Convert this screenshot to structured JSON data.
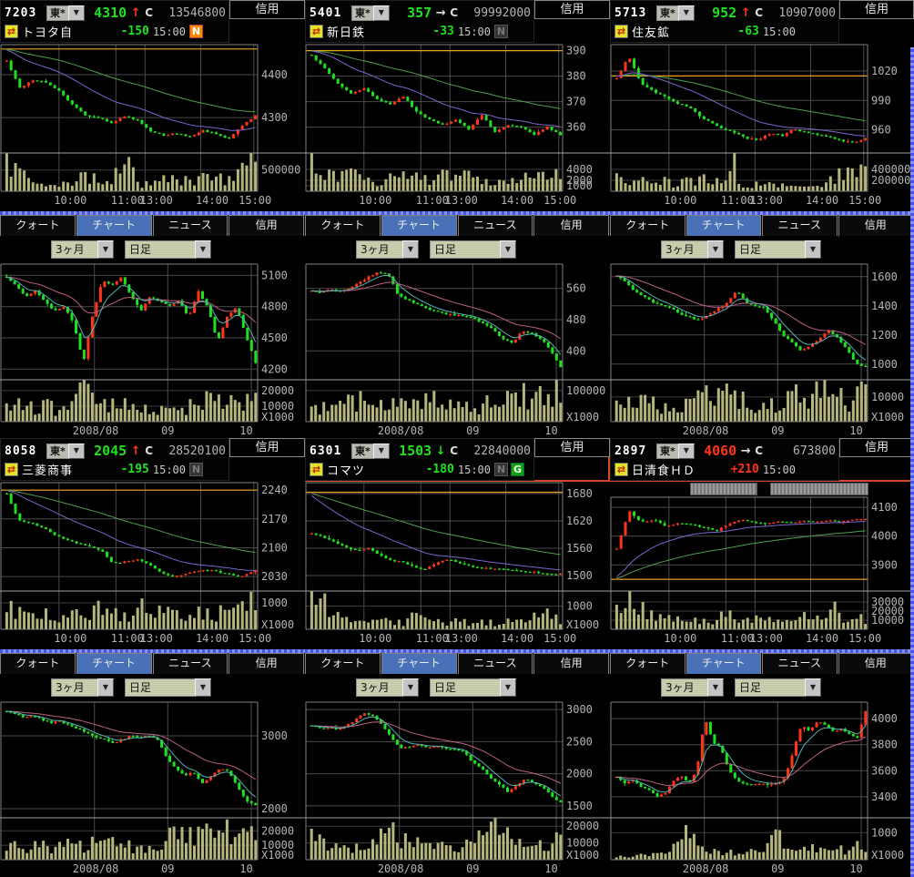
{
  "shared": {
    "tabs": [
      "クォート",
      "チャート",
      "ニュース",
      "信用"
    ],
    "active_tab_index": 1,
    "credit_tab": "信用",
    "period_label": "3ヶ月",
    "interval_label": "日足",
    "close_label": "C",
    "dropdown_glyph": "▼",
    "intraday_xlabels": [
      [
        "10:00",
        0.26
      ],
      [
        "11:00",
        0.485
      ],
      [
        "13:00",
        0.6
      ],
      [
        "14:00",
        0.82
      ],
      [
        "15:00",
        0.99
      ]
    ],
    "intraday_grid": [
      0.215,
      0.44,
      0.555,
      0.775,
      0.985
    ],
    "daily_xlabels": [
      [
        "2008/08",
        0.36
      ],
      [
        "09",
        0.645
      ],
      [
        "10",
        0.955
      ]
    ],
    "daily_grid": [
      0.355,
      0.645,
      0.975
    ],
    "colors": {
      "up": "#ff3518",
      "down": "#1ee11e",
      "flat": "#e0e0e0",
      "prev_close_line": "#e8a01e",
      "ma_intraday_fast": "#7a66cc",
      "ma_intraday_slow": "#4f9e4f",
      "ma_daily_fast": "#57b2b2",
      "ma_daily_slow": "#bb5f84",
      "volume_bar": "#b6b67c",
      "grid_line": "#4a4a4a",
      "axis_text": "#b4b4b4",
      "tab_active_bg": "#4a70b8",
      "highlight_border": "#d04a22"
    }
  },
  "panels": [
    {
      "code": "7203",
      "market": "東*",
      "name": "トヨタ自",
      "price": "4310",
      "price_dir": "down",
      "tick_arrow": "↑",
      "tick_dir": "up",
      "day_volume": "13546800",
      "change": "-150",
      "change_dir": "down",
      "time": "15:00",
      "badges": [
        {
          "label": "N",
          "style": "on-orange"
        }
      ],
      "highlight": false,
      "pre_chart_controls": false,
      "intraday": {
        "type": "candlestick",
        "kind": "intraday",
        "seed": 7203,
        "n": 58,
        "ylim": [
          4230,
          4468
        ],
        "ylabels": [
          4400,
          4300
        ],
        "prev_close": 4460,
        "anchors": [
          4432,
          4368,
          4388,
          4382,
          4362,
          4330,
          4306,
          4300,
          4288,
          4302,
          4294,
          4268,
          4258,
          4263,
          4255,
          4270,
          4261,
          4251,
          4282,
          4304
        ],
        "vols": [
          620000,
          380000,
          300000,
          160000,
          120000,
          260000,
          310000,
          260000,
          180000,
          820000,
          170000,
          180000,
          280000,
          320000,
          240000,
          380000,
          300000,
          260000,
          520000,
          860000
        ],
        "vol_max": 900000,
        "vol_labels": [
          500000
        ],
        "vol_suffix": ""
      },
      "daily": {
        "type": "candlestick",
        "kind": "daily",
        "seed": 72031,
        "n": 62,
        "ylim": [
          4150,
          5200
        ],
        "ylabels": [
          5100,
          4800,
          4500,
          4200
        ],
        "anchors": [
          5080,
          5000,
          4900,
          4950,
          4850,
          4760,
          4800,
          4640,
          4260,
          4720,
          5050,
          5000,
          5080,
          4900,
          4760,
          4900,
          4850,
          4800,
          4860,
          4700,
          4950,
          4800,
          4460,
          4700,
          4800,
          4520,
          4260
        ],
        "vols": [
          9000,
          11000,
          7000,
          10000,
          12000,
          8000,
          11000,
          9000,
          25000,
          15000,
          12000,
          13000,
          11000,
          9000,
          12000,
          8000,
          7000,
          9000,
          6000,
          10000,
          13000,
          15000,
          17000,
          13000,
          11000,
          15000,
          20000
        ],
        "vol_max": 27000,
        "vol_labels": [
          20000,
          10000
        ],
        "vol_suffix": "X1000"
      }
    },
    {
      "code": "5401",
      "market": "東*",
      "name": "新日鉄",
      "price": "357",
      "price_dir": "down",
      "tick_arrow": "→",
      "tick_dir": "flat",
      "day_volume": "99992000",
      "change": "-33",
      "change_dir": "down",
      "time": "15:00",
      "badges": [
        {
          "label": "N",
          "style": "off"
        }
      ],
      "highlight": false,
      "pre_chart_controls": false,
      "intraday": {
        "type": "candlestick",
        "kind": "intraday",
        "seed": 5401,
        "n": 58,
        "ylim": [
          352,
          392
        ],
        "ylabels": [
          390,
          380,
          370,
          360
        ],
        "prev_close": 390,
        "anchors": [
          388,
          383,
          377,
          373,
          375,
          371,
          369,
          372,
          366,
          363,
          361,
          363,
          359,
          365,
          358,
          361,
          360,
          357,
          360,
          357
        ],
        "vols": [
          6200,
          3000,
          2400,
          3800,
          2600,
          3200,
          1800,
          2400,
          2200,
          2600,
          3000,
          2000,
          3600,
          2200,
          2600,
          2400,
          2000,
          1600,
          2800,
          2600,
          3000,
          3400,
          3600,
          2800
        ],
        "vol_max": 7000,
        "vol_labels": [
          4000,
          2000,
          1000
        ],
        "vol_suffix": ""
      },
      "daily": {
        "type": "candlestick",
        "kind": "daily",
        "seed": 54011,
        "n": 62,
        "ylim": [
          340,
          620
        ],
        "ylabels": [
          560,
          480,
          400
        ],
        "anchors": [
          555,
          548,
          558,
          552,
          560,
          575,
          590,
          602,
          596,
          545,
          530,
          520,
          510,
          500,
          495,
          492,
          488,
          482,
          470,
          455,
          430,
          420,
          450,
          445,
          430,
          400,
          360
        ],
        "vols": [
          40000,
          50000,
          35000,
          45000,
          60000,
          70000,
          55000,
          45000,
          65000,
          80000,
          60000,
          50000,
          70000,
          85000,
          65000,
          55000,
          45000,
          40000,
          55000,
          80000,
          70000,
          60000,
          90000,
          65000,
          120000,
          95000,
          125000
        ],
        "vol_max": 135000,
        "vol_labels": [
          100000
        ],
        "vol_suffix": "X1000"
      }
    },
    {
      "code": "5713",
      "market": "東*",
      "name": "住友鉱",
      "price": "952",
      "price_dir": "down",
      "tick_arrow": "↑",
      "tick_dir": "up",
      "day_volume": "10907000",
      "change": "-63",
      "change_dir": "down",
      "time": "15:00",
      "badges": [],
      "highlight": false,
      "pre_chart_controls": false,
      "intraday": {
        "type": "candlestick",
        "kind": "intraday",
        "seed": 5713,
        "n": 58,
        "ylim": [
          942,
          1046
        ],
        "ylabels": [
          1020,
          990,
          960
        ],
        "prev_close": 1015,
        "anchors": [
          1012,
          1036,
          1008,
          1000,
          994,
          987,
          984,
          974,
          967,
          961,
          957,
          951,
          950,
          957,
          954,
          961,
          957,
          955,
          952,
          949,
          947,
          952
        ],
        "vols": [
          300000,
          120000,
          180000,
          200000,
          150000,
          180000,
          120000,
          240000,
          150000,
          200000,
          240000,
          140000,
          650000,
          120000,
          100000,
          140000,
          120000,
          160000,
          140000,
          120000,
          180000,
          160000,
          140000,
          260000,
          320000,
          390000,
          310000
        ],
        "vol_max": 700000,
        "vol_labels": [
          400000,
          200000
        ],
        "vol_suffix": ""
      },
      "daily": {
        "type": "candlestick",
        "kind": "daily",
        "seed": 57131,
        "n": 62,
        "ylim": [
          930,
          1680
        ],
        "ylabels": [
          1600,
          1400,
          1200,
          1000
        ],
        "anchors": [
          1610,
          1560,
          1500,
          1460,
          1425,
          1400,
          1380,
          1340,
          1320,
          1300,
          1340,
          1380,
          1420,
          1505,
          1425,
          1400,
          1390,
          1300,
          1200,
          1150,
          1095,
          1120,
          1180,
          1225,
          1180,
          1100,
          1000,
          985
        ],
        "vols": [
          9000,
          7000,
          8000,
          7500,
          8000,
          7000,
          8500,
          7500,
          9000,
          8000,
          11000,
          9500,
          10500,
          11500,
          9000,
          7500,
          6000,
          5500,
          7000,
          10500,
          11000,
          9000,
          11500,
          10000,
          15500,
          11000,
          6000,
          10500,
          11500
        ],
        "vol_max": 17000,
        "vol_labels": [
          10000
        ],
        "vol_suffix": "X1000"
      }
    },
    {
      "code": "8058",
      "market": "東*",
      "name": "三菱商事",
      "price": "2045",
      "price_dir": "down",
      "tick_arrow": "↑",
      "tick_dir": "up",
      "day_volume": "28520100",
      "change": "-195",
      "change_dir": "down",
      "time": "15:00",
      "badges": [
        {
          "label": "N",
          "style": "off"
        }
      ],
      "highlight": false,
      "pre_chart_controls": false,
      "intraday": {
        "type": "candlestick",
        "kind": "intraday",
        "seed": 8058,
        "n": 58,
        "ylim": [
          2008,
          2256
        ],
        "ylabels": [
          2240,
          2170,
          2100,
          2030
        ],
        "prev_close": 2240,
        "anchors": [
          2232,
          2166,
          2160,
          2150,
          2132,
          2120,
          2110,
          2104,
          2094,
          2062,
          2066,
          2072,
          2060,
          2040,
          2031,
          2036,
          2042,
          2046,
          2040,
          2034,
          2031,
          2046
        ],
        "vols": [
          1100,
          600,
          500,
          650,
          550,
          450,
          600,
          500,
          1250,
          700,
          600,
          450,
          1000,
          600,
          700,
          550,
          450,
          600,
          500,
          650,
          1050,
          800,
          1350
        ],
        "vol_max": 1450,
        "vol_labels": [
          1000
        ],
        "vol_suffix": "X1000"
      },
      "daily": {
        "type": "candlestick",
        "kind": "daily",
        "seed": 80581,
        "n": 62,
        "ylim": [
          1950,
          3450
        ],
        "ylabels": [
          3000,
          2000
        ],
        "anchors": [
          3340,
          3300,
          3250,
          3280,
          3220,
          3180,
          3200,
          3150,
          3100,
          3050,
          2980,
          2950,
          2900,
          2950,
          3000,
          2980,
          3000,
          2950,
          2700,
          2550,
          2450,
          2500,
          2350,
          2450,
          2560,
          2500,
          2300,
          2100,
          2045
        ],
        "vols": [
          12000,
          9000,
          7000,
          8000,
          9000,
          7500,
          8000,
          9500,
          11000,
          10000,
          12000,
          9000,
          10000,
          13000,
          12000,
          8000,
          7000,
          6500,
          9000,
          26000,
          20000,
          16000,
          14000,
          18000,
          16000,
          20000,
          19000,
          20000,
          27000,
          25000
        ],
        "vol_max": 29000,
        "vol_labels": [
          20000,
          10000
        ],
        "vol_suffix": "X1000"
      }
    },
    {
      "code": "6301",
      "market": "東*",
      "name": "コマツ",
      "price": "1503",
      "price_dir": "down",
      "tick_arrow": "↓",
      "tick_dir": "down",
      "day_volume": "22840000",
      "change": "-180",
      "change_dir": "down",
      "time": "15:00",
      "badges": [
        {
          "label": "N",
          "style": "off"
        },
        {
          "label": "G",
          "style": "on-green"
        }
      ],
      "highlight": true,
      "pre_chart_controls": false,
      "intraday": {
        "type": "candlestick",
        "kind": "intraday",
        "seed": 6301,
        "n": 58,
        "ylim": [
          1478,
          1702
        ],
        "ylabels": [
          1680,
          1620,
          1560,
          1500
        ],
        "prev_close": 1683,
        "anchors": [
          1592,
          1585,
          1574,
          1564,
          1554,
          1560,
          1544,
          1534,
          1529,
          1519,
          1514,
          1526,
          1536,
          1529,
          1521,
          1517,
          1515,
          1513,
          1511,
          1509,
          1507,
          1504,
          1503
        ],
        "vols": [
          1500,
          1300,
          900,
          500,
          400,
          450,
          350,
          400,
          350,
          300,
          550,
          350,
          300,
          250,
          350,
          300,
          350,
          300,
          250,
          350,
          300,
          450,
          850,
          500,
          420
        ],
        "vol_max": 1650,
        "vol_labels": [
          1000
        ],
        "vol_suffix": "X1000"
      },
      "daily": {
        "type": "candlestick",
        "kind": "daily",
        "seed": 63011,
        "n": 62,
        "ylim": [
          1400,
          3100
        ],
        "ylabels": [
          3000,
          2500,
          2000,
          1500
        ],
        "anchors": [
          2750,
          2700,
          2725,
          2680,
          2750,
          2850,
          2950,
          2900,
          2740,
          2550,
          2400,
          2420,
          2450,
          2400,
          2425,
          2400,
          2380,
          2350,
          2200,
          2100,
          1950,
          1850,
          1720,
          1800,
          1920,
          1850,
          1800,
          1650,
          1550
        ],
        "vols": [
          13000,
          11000,
          8000,
          9000,
          7000,
          8000,
          6000,
          7000,
          15000,
          18000,
          16000,
          12000,
          10000,
          12000,
          9000,
          8000,
          7000,
          6000,
          9000,
          12000,
          17000,
          23000,
          14000,
          16000,
          12000,
          14000,
          11000,
          8000,
          12000,
          21000
        ],
        "vol_max": 25000,
        "vol_labels": [
          20000,
          10000
        ],
        "vol_suffix": "X1000"
      }
    },
    {
      "code": "2897",
      "market": "東*",
      "name": "日清食ＨＤ",
      "price": "4060",
      "price_dir": "up",
      "tick_arrow": "→",
      "tick_dir": "flat",
      "day_volume": "673800",
      "change": "+210",
      "change_dir": "up",
      "time": "15:00",
      "badges": [],
      "highlight": true,
      "pre_chart_controls": true,
      "intraday": {
        "type": "candlestick",
        "kind": "intraday",
        "seed": 2897,
        "n": 58,
        "h_price": 104,
        "h_vol": 42,
        "ylim": [
          3828,
          4132
        ],
        "ylabels": [
          4100,
          4000,
          3900
        ],
        "prev_close": 3850,
        "anchors": [
          3958,
          4086,
          4048,
          4058,
          4034,
          4046,
          4040,
          4030,
          4018,
          4042,
          4056,
          4048,
          4044,
          4050,
          4046,
          4052,
          4048,
          4054,
          4050,
          4058,
          4061
        ],
        "vols": [
          38000,
          30000,
          34000,
          16000,
          12000,
          14000,
          10000,
          9000,
          12000,
          8000,
          16000,
          12000,
          18000,
          10000,
          9000,
          12000,
          10000,
          14000,
          9000,
          12000,
          24000,
          16000,
          18000,
          13000
        ],
        "vol_max": 42000,
        "vol_labels": [
          30000,
          20000,
          10000
        ],
        "vol_suffix": ""
      },
      "daily": {
        "type": "candlestick",
        "kind": "daily",
        "seed": 28971,
        "n": 62,
        "ylim": [
          3280,
          4120
        ],
        "ylabels": [
          4000,
          3800,
          3600,
          3400
        ],
        "anchors": [
          3550,
          3500,
          3530,
          3480,
          3450,
          3405,
          3420,
          3520,
          3560,
          3500,
          3600,
          4005,
          3820,
          3780,
          3600,
          3520,
          3500,
          3490,
          3500,
          3495,
          3500,
          3550,
          3750,
          3950,
          3900,
          3980,
          3950,
          3900,
          3920,
          3880,
          3850,
          4055
        ],
        "vols": [
          150,
          100,
          120,
          180,
          150,
          200,
          250,
          300,
          1450,
          700,
          600,
          350,
          450,
          300,
          250,
          280,
          300,
          250,
          350,
          550,
          1100,
          500,
          450,
          400,
          500,
          300,
          350,
          400,
          350,
          300,
          600,
          450
        ],
        "vol_max": 1550,
        "vol_labels": [
          1000
        ],
        "vol_suffix": "X1000"
      }
    }
  ]
}
